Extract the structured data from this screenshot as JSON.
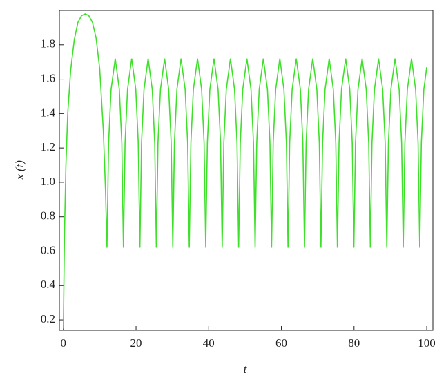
{
  "chart_data": {
    "type": "line",
    "xlabel": "t",
    "ylabel": "x (t)",
    "x": [
      0,
      0.3,
      0.7,
      1.2,
      2,
      3,
      4,
      5,
      6,
      7,
      8,
      9,
      10,
      11,
      11.6,
      12,
      12.45,
      13.13,
      14.27,
      15.4,
      16.08,
      16.53,
      16.98,
      17.66,
      18.8,
      19.93,
      20.61,
      21.06,
      21.51,
      22.19,
      23.33,
      24.46,
      25.14,
      25.59,
      26.04,
      26.72,
      27.86,
      28.99,
      29.67,
      30.12,
      30.57,
      31.25,
      32.39,
      33.52,
      34.2,
      34.65,
      35.1,
      35.78,
      36.92,
      38.05,
      38.73,
      39.18,
      39.63,
      40.31,
      41.45,
      42.58,
      43.26,
      43.71,
      44.16,
      44.84,
      45.98,
      47.11,
      47.79,
      48.24,
      48.69,
      49.37,
      50.51,
      51.64,
      52.32,
      52.77,
      53.22,
      53.9,
      55.04,
      56.17,
      56.85,
      57.3,
      57.75,
      58.43,
      59.57,
      60.7,
      61.38,
      61.83,
      62.28,
      62.96,
      64.1,
      65.23,
      65.91,
      66.36,
      66.81,
      67.49,
      68.63,
      69.76,
      70.44,
      70.89,
      71.34,
      72.02,
      73.16,
      74.29,
      74.97,
      75.42,
      75.87,
      76.55,
      77.69,
      78.82,
      79.5,
      79.95,
      80.4,
      81.08,
      82.22,
      83.35,
      84.03,
      84.48,
      84.93,
      85.61,
      86.75,
      87.88,
      88.56,
      89.01,
      89.46,
      90.14,
      91.28,
      92.41,
      93.09,
      93.54,
      93.99,
      94.67,
      95.81,
      96.94,
      97.62,
      98.07,
      98.52,
      99.2,
      100
    ],
    "series": [
      {
        "color": "#3ee02a",
        "values": [
          0.15,
          0.7,
          1.1,
          1.4,
          1.65,
          1.83,
          1.93,
          1.97,
          1.98,
          1.97,
          1.93,
          1.84,
          1.66,
          1.3,
          0.95,
          0.62,
          1.23,
          1.54,
          1.72,
          1.54,
          1.23,
          0.62,
          1.23,
          1.54,
          1.72,
          1.54,
          1.23,
          0.62,
          1.23,
          1.54,
          1.72,
          1.54,
          1.23,
          0.62,
          1.23,
          1.54,
          1.72,
          1.54,
          1.23,
          0.62,
          1.23,
          1.54,
          1.72,
          1.54,
          1.23,
          0.62,
          1.23,
          1.54,
          1.72,
          1.54,
          1.23,
          0.62,
          1.23,
          1.54,
          1.72,
          1.54,
          1.23,
          0.62,
          1.23,
          1.54,
          1.72,
          1.54,
          1.23,
          0.62,
          1.23,
          1.54,
          1.72,
          1.54,
          1.23,
          0.62,
          1.23,
          1.54,
          1.72,
          1.54,
          1.23,
          0.62,
          1.23,
          1.54,
          1.72,
          1.54,
          1.23,
          0.62,
          1.23,
          1.54,
          1.72,
          1.54,
          1.23,
          0.62,
          1.23,
          1.54,
          1.72,
          1.54,
          1.23,
          0.62,
          1.23,
          1.54,
          1.72,
          1.54,
          1.23,
          0.62,
          1.23,
          1.54,
          1.72,
          1.54,
          1.23,
          0.62,
          1.23,
          1.54,
          1.72,
          1.54,
          1.23,
          0.62,
          1.23,
          1.54,
          1.72,
          1.54,
          1.23,
          0.62,
          1.23,
          1.54,
          1.72,
          1.54,
          1.23,
          0.62,
          1.23,
          1.54,
          1.72,
          1.54,
          1.23,
          0.62,
          1.23,
          1.54,
          1.67
        ]
      }
    ],
    "xlim": [
      -1.1,
      101.7
    ],
    "ylim": [
      0.14,
      2.0
    ],
    "xticks": [
      0,
      20,
      40,
      60,
      80,
      100
    ],
    "yticks": [
      0.2,
      0.4,
      0.6,
      0.8,
      {
        "value": 1,
        "label": "1.0"
      },
      1.2,
      1.4,
      1.6,
      1.8
    ]
  }
}
